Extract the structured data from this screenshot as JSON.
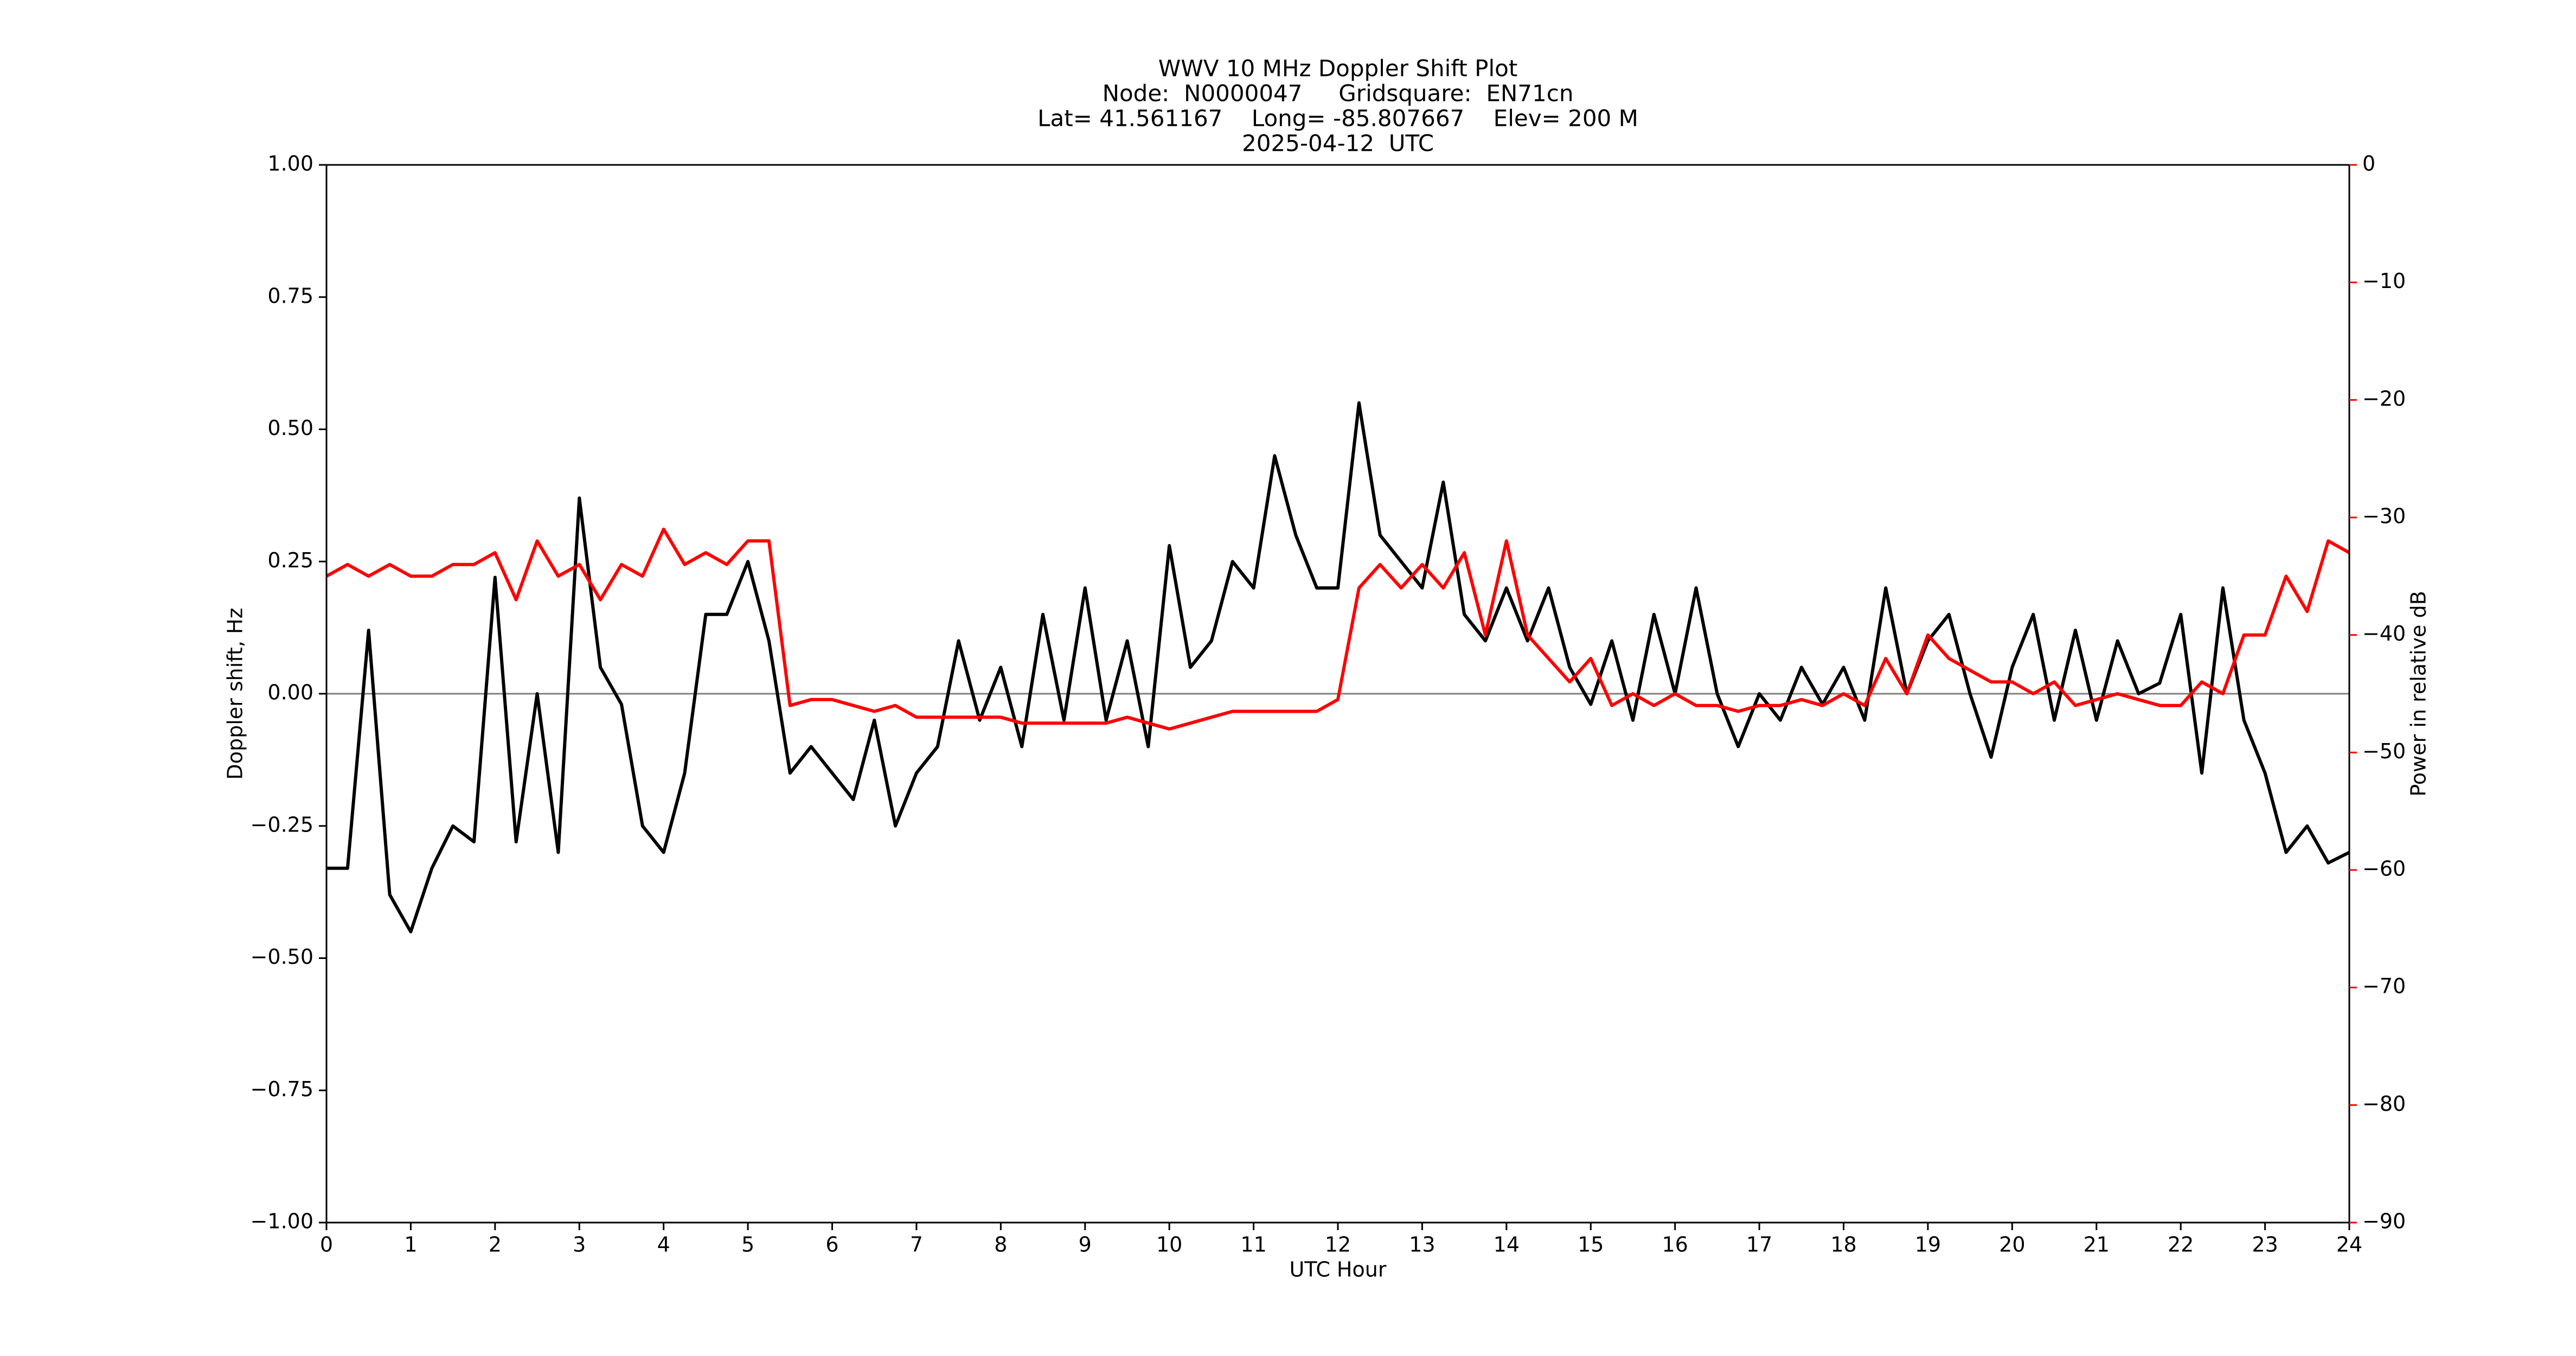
{
  "chart_data": {
    "type": "line",
    "title_lines": [
      "WWV 10 MHz Doppler Shift Plot",
      "Node:  N0000047     Gridsquare:  EN71cn",
      "Lat= 41.561167    Long= -85.807667    Elev= 200 M",
      "2025-04-12  UTC"
    ],
    "xlabel": "UTC Hour",
    "ylabel": "Doppler shift, Hz",
    "y2label": "Power in relative dB",
    "x": [
      0,
      0.25,
      0.5,
      0.75,
      1,
      1.25,
      1.5,
      1.75,
      2,
      2.25,
      2.5,
      2.75,
      3,
      3.25,
      3.5,
      3.75,
      4,
      4.25,
      4.5,
      4.75,
      5,
      5.25,
      5.5,
      5.75,
      6,
      6.25,
      6.5,
      6.75,
      7,
      7.25,
      7.5,
      7.75,
      8,
      8.25,
      8.5,
      8.75,
      9,
      9.25,
      9.5,
      9.75,
      10,
      10.25,
      10.5,
      10.75,
      11,
      11.25,
      11.5,
      11.75,
      12,
      12.25,
      12.5,
      12.75,
      13,
      13.25,
      13.5,
      13.75,
      14,
      14.25,
      14.5,
      14.75,
      15,
      15.25,
      15.5,
      15.75,
      16,
      16.25,
      16.5,
      16.75,
      17,
      17.25,
      17.5,
      17.75,
      18,
      18.25,
      18.5,
      18.75,
      19,
      19.25,
      19.5,
      19.75,
      20,
      20.25,
      20.5,
      20.75,
      21,
      21.25,
      21.5,
      21.75,
      22,
      22.25,
      22.5,
      22.75,
      23,
      23.25,
      23.5,
      23.75,
      24
    ],
    "series": [
      {
        "name": "Doppler shift",
        "color": "#000000",
        "axis": "y",
        "values": [
          -0.33,
          -0.33,
          0.12,
          -0.38,
          -0.45,
          -0.33,
          -0.25,
          -0.28,
          0.22,
          -0.28,
          0.0,
          -0.3,
          0.37,
          0.05,
          -0.02,
          -0.25,
          -0.3,
          -0.15,
          0.15,
          0.15,
          0.25,
          0.1,
          -0.15,
          -0.1,
          -0.15,
          -0.2,
          -0.05,
          -0.25,
          -0.15,
          -0.1,
          0.1,
          -0.05,
          0.05,
          -0.1,
          0.15,
          -0.05,
          0.2,
          -0.05,
          0.1,
          -0.1,
          0.28,
          0.05,
          0.1,
          0.25,
          0.2,
          0.45,
          0.3,
          0.2,
          0.2,
          0.55,
          0.3,
          0.25,
          0.2,
          0.4,
          0.15,
          0.1,
          0.2,
          0.1,
          0.2,
          0.05,
          -0.02,
          0.1,
          -0.05,
          0.15,
          0.0,
          0.2,
          0.0,
          -0.1,
          0.0,
          -0.05,
          0.05,
          -0.02,
          0.05,
          -0.05,
          0.2,
          0.0,
          0.1,
          0.15,
          0.0,
          -0.12,
          0.05,
          0.15,
          -0.05,
          0.12,
          -0.05,
          0.1,
          0.0,
          0.02,
          0.15,
          -0.15,
          0.2,
          -0.05,
          -0.15,
          -0.3,
          -0.25,
          -0.32,
          -0.3
        ]
      },
      {
        "name": "Power",
        "color": "#ff0000",
        "axis": "y2",
        "values": [
          -35,
          -34,
          -35,
          -34,
          -35,
          -35,
          -34,
          -34,
          -33,
          -37,
          -32,
          -35,
          -34,
          -37,
          -34,
          -35,
          -31,
          -34,
          -33,
          -34,
          -32,
          -32,
          -46,
          -45.5,
          -45.5,
          -46,
          -46.5,
          -46,
          -47,
          -47,
          -47,
          -47,
          -47,
          -47.5,
          -47.5,
          -47.5,
          -47.5,
          -47.5,
          -47,
          -47.5,
          -48,
          -47.5,
          -47,
          -46.5,
          -46.5,
          -46.5,
          -46.5,
          -46.5,
          -45.5,
          -36,
          -34,
          -36,
          -34,
          -36,
          -33,
          -40,
          -32,
          -40,
          -42,
          -44,
          -42,
          -46,
          -45,
          -46,
          -45,
          -46,
          -46,
          -46.5,
          -46,
          -46,
          -45.5,
          -46,
          -45,
          -46,
          -42,
          -45,
          -40,
          -42,
          -43,
          -44,
          -44,
          -45,
          -44,
          -46,
          -45.5,
          -45,
          -45.5,
          -46,
          -46,
          -44,
          -45,
          -40,
          -40,
          -35,
          -38,
          -32,
          -33
        ]
      }
    ],
    "xlim": [
      0,
      24
    ],
    "xticks": [
      0,
      1,
      2,
      3,
      4,
      5,
      6,
      7,
      8,
      9,
      10,
      11,
      12,
      13,
      14,
      15,
      16,
      17,
      18,
      19,
      20,
      21,
      22,
      23,
      24
    ],
    "ylim": [
      -1,
      1
    ],
    "yticks": [
      {
        "value": -1,
        "label": "−1.00"
      },
      {
        "value": -0.75,
        "label": "−0.75"
      },
      {
        "value": -0.5,
        "label": "−0.50"
      },
      {
        "value": -0.25,
        "label": "−0.25"
      },
      {
        "value": 0,
        "label": "0.00"
      },
      {
        "value": 0.25,
        "label": "0.25"
      },
      {
        "value": 0.5,
        "label": "0.50"
      },
      {
        "value": 0.75,
        "label": "0.75"
      },
      {
        "value": 1,
        "label": "1.00"
      }
    ],
    "y2lim": [
      -90,
      0
    ],
    "y2ticks": [
      {
        "value": -90,
        "label": "−90"
      },
      {
        "value": -80,
        "label": "−80"
      },
      {
        "value": -70,
        "label": "−70"
      },
      {
        "value": -60,
        "label": "−60"
      },
      {
        "value": -50,
        "label": "−50"
      },
      {
        "value": -40,
        "label": "−40"
      },
      {
        "value": -30,
        "label": "−30"
      },
      {
        "value": -20,
        "label": "−20"
      },
      {
        "value": -10,
        "label": "−10"
      },
      0
    ],
    "y2color": "#ff0000",
    "hline": 0,
    "hline_color": "#808080"
  }
}
